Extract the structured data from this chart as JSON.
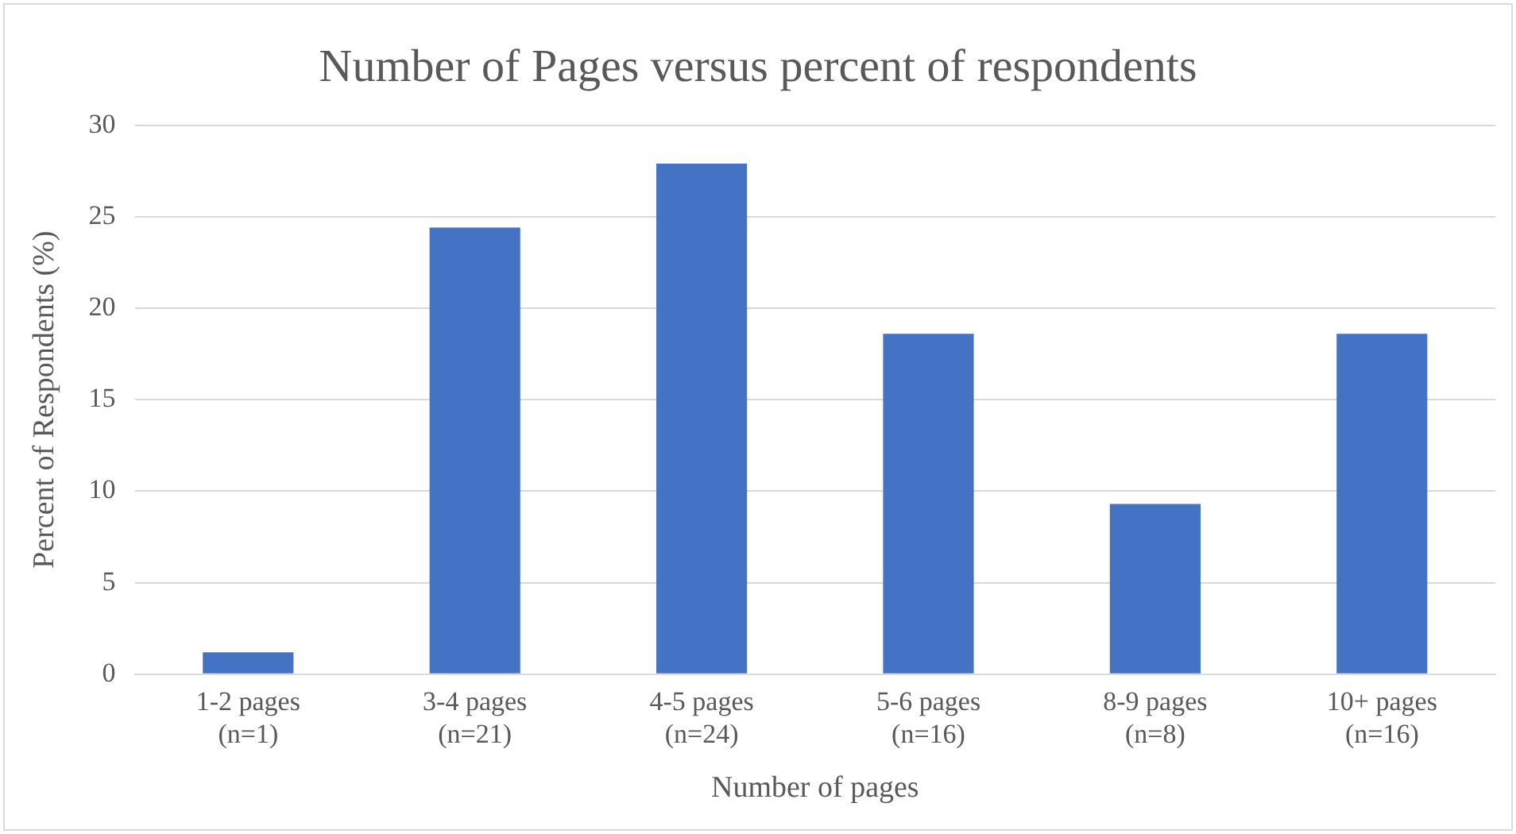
{
  "chart_data": {
    "type": "bar",
    "title": "Number of Pages versus percent of respondents",
    "xlabel": "Number of pages",
    "ylabel": "Percent of Respondents (%)",
    "categories": [
      "1-2 pages\n(n=1)",
      "3-4 pages\n(n=21)",
      "4-5 pages\n(n=24)",
      "5-6 pages\n(n=16)",
      "8-9 pages\n(n=8)",
      "10+ pages\n(n=16)"
    ],
    "values": [
      1.2,
      24.4,
      27.9,
      18.6,
      9.3,
      18.6
    ],
    "color": "#4472c4",
    "ylim": [
      0,
      30
    ],
    "yticks": [
      0,
      5,
      10,
      15,
      20,
      25,
      30
    ],
    "grid": "y",
    "legend": false
  }
}
